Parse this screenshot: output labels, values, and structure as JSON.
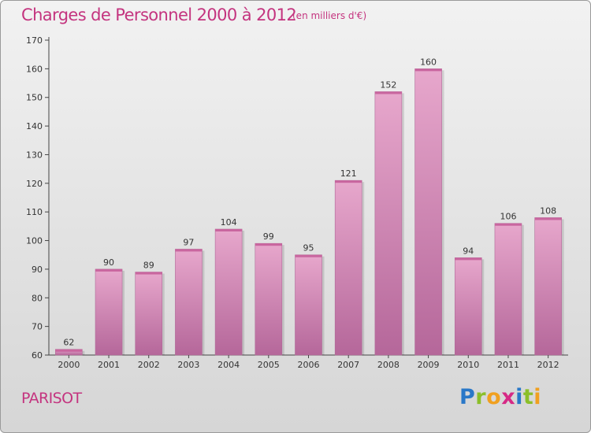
{
  "header": {
    "title": "Charges de Personnel 2000 à 2012",
    "subtitle": "(en milliers d'€)"
  },
  "footer": {
    "location": "PARISOT",
    "logo_letters": [
      {
        "char": "P",
        "color": "#2a78c8"
      },
      {
        "char": "r",
        "color": "#8bbf2a"
      },
      {
        "char": "o",
        "color": "#f0a020"
      },
      {
        "char": "x",
        "color": "#d62a86"
      },
      {
        "char": "i",
        "color": "#2a78c8"
      },
      {
        "char": "t",
        "color": "#8bbf2a"
      },
      {
        "char": "i",
        "color": "#f0a020"
      }
    ]
  },
  "colors": {
    "title": "#c4347f",
    "bar_top": "#e7a7cc",
    "bar_bottom": "#b5679a",
    "axis": "#444444"
  },
  "chart_data": {
    "type": "bar",
    "title": "Charges de Personnel 2000 à 2012",
    "subtitle": "(en milliers d'€)",
    "xlabel": "",
    "ylabel": "",
    "categories": [
      "2000",
      "2001",
      "2002",
      "2003",
      "2004",
      "2005",
      "2006",
      "2007",
      "2008",
      "2009",
      "2010",
      "2011",
      "2012"
    ],
    "values": [
      62,
      90,
      89,
      97,
      104,
      99,
      95,
      121,
      152,
      160,
      94,
      106,
      108
    ],
    "ylim": [
      60,
      170
    ],
    "yticks": [
      60,
      70,
      80,
      90,
      100,
      110,
      120,
      130,
      140,
      150,
      160,
      170
    ],
    "grid": false,
    "legend": "none"
  }
}
